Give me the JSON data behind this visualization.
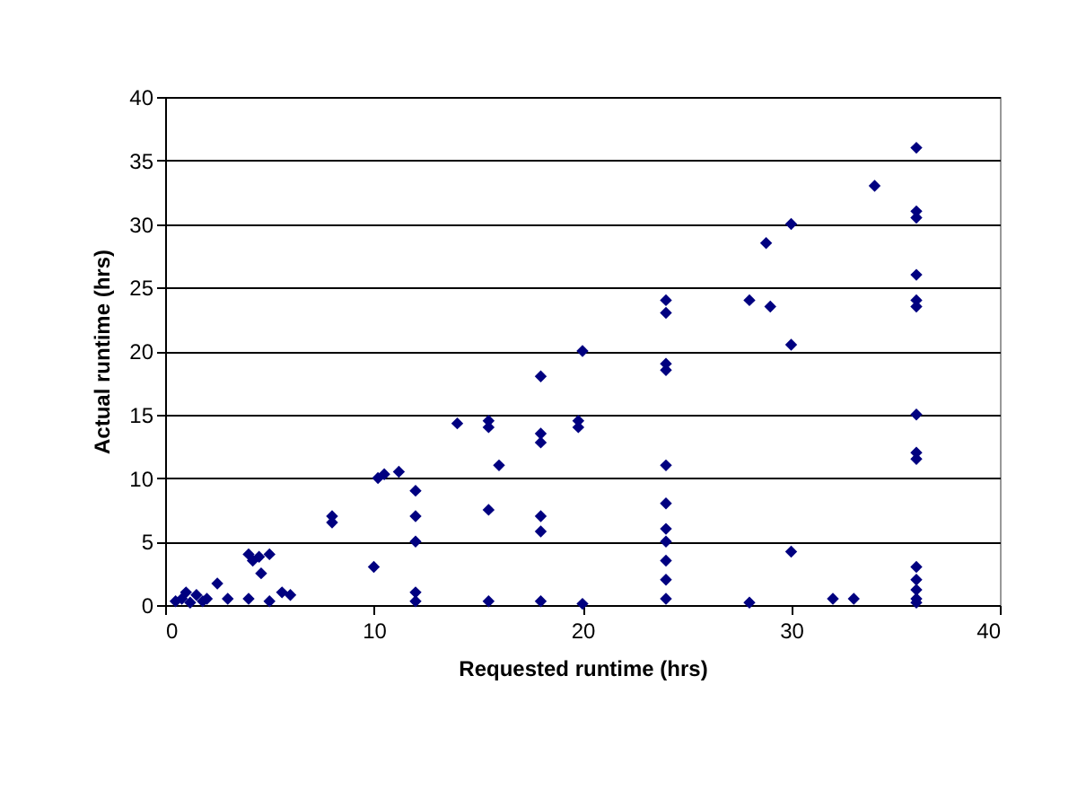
{
  "chart_data": {
    "type": "scatter",
    "xlabel": "Requested runtime (hrs)",
    "ylabel": "Actual runtime (hrs)",
    "xlim": [
      0,
      40
    ],
    "xticks": [
      0,
      10,
      20,
      30,
      40
    ],
    "ylim": [
      0,
      40
    ],
    "yticks": [
      0,
      5,
      10,
      15,
      20,
      25,
      30,
      35,
      40
    ],
    "grid": "y",
    "marker": "diamond",
    "series": [
      {
        "color": "#000080",
        "x": [
          0.5,
          0.8,
          1,
          1.2,
          1.5,
          1.8,
          2,
          2.5,
          3,
          4,
          4.2,
          4.5,
          5,
          4.6,
          4,
          5,
          5.6,
          6,
          8,
          8,
          10,
          10.2,
          10.5,
          11.2,
          12,
          12,
          12,
          12,
          12,
          14,
          15.5,
          15.5,
          15.5,
          15.5,
          16,
          18,
          18,
          18,
          18,
          18,
          18,
          19.8,
          19.8,
          20,
          20,
          24,
          24,
          24,
          24,
          24,
          24,
          24,
          24,
          24,
          24,
          24,
          28,
          28,
          28.8,
          29,
          30,
          30,
          30,
          32,
          33,
          34,
          36,
          36,
          36,
          36,
          36,
          36,
          36,
          36,
          36,
          36,
          36,
          36,
          36,
          36
        ],
        "values": [
          0.3,
          0.5,
          1,
          0.2,
          0.8,
          0.3,
          0.5,
          1.7,
          0.5,
          4,
          3.5,
          3.8,
          4,
          2.5,
          0.5,
          0.3,
          1,
          0.8,
          7,
          6.5,
          3,
          10,
          10.3,
          10.5,
          9,
          7,
          5,
          1,
          0.3,
          14.3,
          14.5,
          14,
          7.5,
          0.3,
          11,
          18,
          13.5,
          12.8,
          7,
          5.8,
          0.3,
          14.5,
          14,
          20,
          0.1,
          24,
          23,
          19,
          18.5,
          11,
          8,
          6,
          5,
          3.5,
          2,
          0.5,
          24,
          0.2,
          28.5,
          23.5,
          30,
          20.5,
          4.2,
          0.5,
          0.5,
          33,
          36,
          31,
          30.5,
          26,
          24,
          23.5,
          15,
          12,
          11.5,
          3,
          2,
          1.2,
          0.5,
          0.2
        ]
      }
    ]
  }
}
